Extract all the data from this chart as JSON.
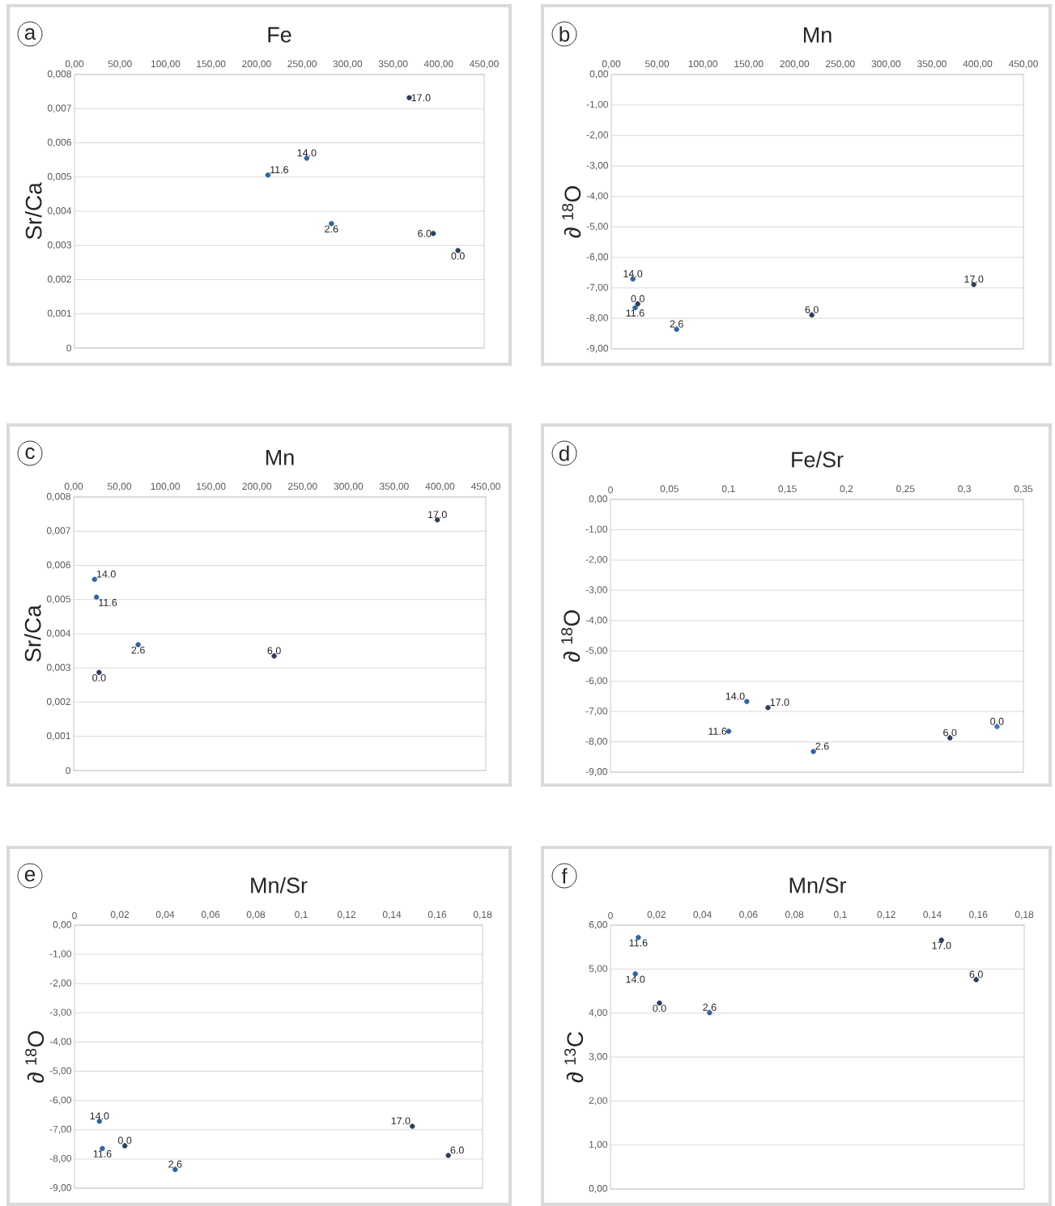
{
  "chart_data": [
    {
      "type": "scatter",
      "title": "Fe",
      "ylabel": "Sr/Ca",
      "grid": "y",
      "x": [
        367.7,
        255.1,
        212.5,
        282.2,
        394.1,
        421.2
      ],
      "values": [
        0.00732,
        0.00555,
        0.00506,
        0.00364,
        0.00335,
        0.00285
      ],
      "colors": [
        "#2d3e5e",
        "#2e64a2",
        "#2e64a2",
        "#2e64a2",
        "#2d3e5e",
        "#2d3e5e"
      ],
      "xlim": [
        0,
        450
      ],
      "ylim": [
        0,
        0.008
      ],
      "xticks": [
        {
          "value": 0,
          "label": "0,00"
        },
        {
          "value": 50,
          "label": "50,00"
        },
        {
          "value": 100,
          "label": "100,00"
        },
        {
          "value": 150,
          "label": "150,00"
        },
        {
          "value": 200,
          "label": "200,00"
        },
        {
          "value": 250,
          "label": "250,00"
        },
        {
          "value": 300,
          "label": "300,00"
        },
        {
          "value": 350,
          "label": "350,00"
        },
        {
          "value": 400,
          "label": "400,00"
        },
        {
          "value": 450,
          "label": "450,00"
        }
      ],
      "yticks": [
        0,
        {
          "value": 0.001,
          "label": "0,001"
        },
        {
          "value": 0.002,
          "label": "0,002"
        },
        {
          "value": 0.003,
          "label": "0,003"
        },
        {
          "value": 0.004,
          "label": "0,004"
        },
        {
          "value": 0.005,
          "label": "0,005"
        },
        {
          "value": 0.006,
          "label": "0,006"
        },
        {
          "value": 0.007,
          "label": "0,007"
        },
        {
          "value": 0.008,
          "label": "0,008"
        }
      ],
      "annotations": [
        "a",
        {
          "text": "17.0",
          "x": 367.7,
          "y": 0.00732
        },
        {
          "text": "14.0",
          "x": 255.1,
          "y": 0.00555
        },
        {
          "text": "11.6",
          "x": 212.5,
          "y": 0.00506
        },
        {
          "text": "2.6",
          "x": 282.2,
          "y": 0.00364
        },
        {
          "text": "6.0",
          "x": 394.1,
          "y": 0.00335
        },
        {
          "text": "0.0",
          "x": 421.2,
          "y": 0.00285
        }
      ]
    },
    {
      "type": "scatter",
      "title": "Mn",
      "ylabel": "∂ $^{18}$O",
      "grid": "y",
      "x": [
        23.5,
        28.9,
        26.0,
        71.3,
        218.9,
        395.8
      ],
      "values": [
        -6.71,
        -7.53,
        -7.65,
        -8.36,
        -7.89,
        -6.89
      ],
      "colors": [
        "#2e64a2",
        "#2d3e5e",
        "#2e64a2",
        "#2e64a2",
        "#2d3e5e",
        "#2d3e5e"
      ],
      "xlim": [
        0,
        450
      ],
      "ylim": [
        -9,
        0
      ],
      "xticks": [
        {
          "value": 0,
          "label": "0,00"
        },
        {
          "value": 50,
          "label": "50,00"
        },
        {
          "value": 100,
          "label": "100,00"
        },
        {
          "value": 150,
          "label": "150,00"
        },
        {
          "value": 200,
          "label": "200,00"
        },
        {
          "value": 250,
          "label": "250,00"
        },
        {
          "value": 300,
          "label": "300,00"
        },
        {
          "value": 350,
          "label": "350,00"
        },
        {
          "value": 400,
          "label": "400,00"
        },
        {
          "value": 450,
          "label": "450,00"
        }
      ],
      "yticks": [
        {
          "value": -9,
          "label": "-9,00"
        },
        {
          "value": -8,
          "label": "-8,00"
        },
        {
          "value": -7,
          "label": "-7,00"
        },
        {
          "value": -6,
          "label": "-6,00"
        },
        {
          "value": -5,
          "label": "-5,00"
        },
        {
          "value": -4,
          "label": "-4,00"
        },
        {
          "value": -3,
          "label": "-3,00"
        },
        {
          "value": -2,
          "label": "-2,00"
        },
        {
          "value": -1,
          "label": "-1,00"
        },
        {
          "value": 0,
          "label": "0,00"
        }
      ],
      "annotations": [
        "b",
        {
          "text": "14.0",
          "x": 23.5,
          "y": -6.71
        },
        {
          "text": "0.0",
          "x": 28.9,
          "y": -7.53
        },
        {
          "text": "11.6",
          "x": 26.0,
          "y": -7.65
        },
        {
          "text": "2.6",
          "x": 71.3,
          "y": -8.36
        },
        {
          "text": "6.0",
          "x": 218.9,
          "y": -7.89
        },
        {
          "text": "17.0",
          "x": 395.8,
          "y": -6.89
        }
      ]
    },
    {
      "type": "scatter",
      "title": "Mn",
      "ylabel": "Sr/Ca",
      "grid": "y",
      "x": [
        397.1,
        22.8,
        24.9,
        70.4,
        27.7,
        218.9
      ],
      "values": [
        0.00733,
        0.00559,
        0.00507,
        0.00368,
        0.00287,
        0.00335
      ],
      "colors": [
        "#2d3e5e",
        "#2e64a2",
        "#2e64a2",
        "#2e64a2",
        "#2d3e5e",
        "#2d3e5e"
      ],
      "xlim": [
        0,
        450
      ],
      "ylim": [
        0,
        0.008
      ],
      "xticks": [
        {
          "value": 0,
          "label": "0,00"
        },
        {
          "value": 50,
          "label": "50,00"
        },
        {
          "value": 100,
          "label": "100,00"
        },
        {
          "value": 150,
          "label": "150,00"
        },
        {
          "value": 200,
          "label": "200,00"
        },
        {
          "value": 250,
          "label": "250,00"
        },
        {
          "value": 300,
          "label": "300,00"
        },
        {
          "value": 350,
          "label": "350,00"
        },
        {
          "value": 400,
          "label": "400,00"
        },
        {
          "value": 450,
          "label": "450,00"
        }
      ],
      "yticks": [
        0,
        {
          "value": 0.001,
          "label": "0,001"
        },
        {
          "value": 0.002,
          "label": "0,002"
        },
        {
          "value": 0.003,
          "label": "0,003"
        },
        {
          "value": 0.004,
          "label": "0,004"
        },
        {
          "value": 0.005,
          "label": "0,005"
        },
        {
          "value": 0.006,
          "label": "0,006"
        },
        {
          "value": 0.007,
          "label": "0,007"
        },
        {
          "value": 0.008,
          "label": "0,008"
        }
      ],
      "annotations": [
        "c",
        {
          "text": "17.0",
          "x": 397.1,
          "y": 0.00733
        },
        {
          "text": "14.0",
          "x": 22.8,
          "y": 0.00559
        },
        {
          "text": "11.6",
          "x": 24.9,
          "y": 0.00507
        },
        {
          "text": "2.6",
          "x": 70.4,
          "y": 0.00368
        },
        {
          "text": "0.0",
          "x": 27.7,
          "y": 0.00287
        },
        {
          "text": "6.0",
          "x": 218.9,
          "y": 0.00335
        }
      ]
    },
    {
      "type": "scatter",
      "title": "Fe/Sr",
      "ylabel": "∂ $^{18}$O",
      "grid": "y",
      "x": [
        0.1155,
        0.1335,
        0.1002,
        0.172,
        0.2877,
        0.3276
      ],
      "values": [
        -6.67,
        -6.87,
        -7.65,
        -8.32,
        -7.87,
        -7.5
      ],
      "colors": [
        "#2e64a2",
        "#2d3e5e",
        "#2e64a2",
        "#2e64a2",
        "#2d3e5e",
        "#3f74d6"
      ],
      "xlim": [
        0,
        0.35
      ],
      "ylim": [
        -9,
        0
      ],
      "xticks": [
        0,
        {
          "value": 0.05,
          "label": "0,05"
        },
        {
          "value": 0.1,
          "label": "0,1"
        },
        {
          "value": 0.15,
          "label": "0,15"
        },
        {
          "value": 0.2,
          "label": "0,2"
        },
        {
          "value": 0.25,
          "label": "0,25"
        },
        {
          "value": 0.3,
          "label": "0,3"
        },
        {
          "value": 0.35,
          "label": "0,35"
        }
      ],
      "yticks": [
        {
          "value": -9,
          "label": "-9,00"
        },
        {
          "value": -8,
          "label": "-8,00"
        },
        {
          "value": -7,
          "label": "-7,00"
        },
        {
          "value": -6,
          "label": "-6,00"
        },
        {
          "value": -5,
          "label": "-5,00"
        },
        {
          "value": -4,
          "label": "-4,00"
        },
        {
          "value": -3,
          "label": "-3,00"
        },
        {
          "value": -2,
          "label": "-2,00"
        },
        {
          "value": -1,
          "label": "-1,00"
        },
        {
          "value": 0,
          "label": "0,00"
        }
      ],
      "annotations": [
        "d",
        {
          "text": "14.0",
          "x": 0.1155,
          "y": -6.67
        },
        {
          "text": "17.0",
          "x": 0.1335,
          "y": -6.87
        },
        {
          "text": "11.6",
          "x": 0.1002,
          "y": -7.65
        },
        {
          "text": "2.6",
          "x": 0.172,
          "y": -8.32
        },
        {
          "text": "6.0",
          "x": 0.2877,
          "y": -7.87
        },
        {
          "text": "0.0",
          "x": 0.3276,
          "y": -7.5
        }
      ]
    },
    {
      "type": "scatter",
      "title": "Mn/Sr",
      "ylabel": "∂ $^{18}$O",
      "grid": "y",
      "x": [
        0.011,
        0.0123,
        0.0222,
        0.0444,
        0.149,
        0.1649
      ],
      "values": [
        -6.71,
        -7.64,
        -7.55,
        -8.36,
        -6.88,
        -7.88
      ],
      "colors": [
        "#2e64a2",
        "#2e64a2",
        "#2d3e5e",
        "#2e64a2",
        "#2d3e5e",
        "#2d3e5e"
      ],
      "xlim": [
        0,
        0.18
      ],
      "ylim": [
        -9,
        0
      ],
      "xticks": [
        0,
        {
          "value": 0.02,
          "label": "0,02"
        },
        {
          "value": 0.04,
          "label": "0,04"
        },
        {
          "value": 0.06,
          "label": "0,06"
        },
        {
          "value": 0.08,
          "label": "0,08"
        },
        {
          "value": 0.1,
          "label": "0,1"
        },
        {
          "value": 0.12,
          "label": "0,12"
        },
        {
          "value": 0.14,
          "label": "0,14"
        },
        {
          "value": 0.16,
          "label": "0,16"
        },
        {
          "value": 0.18,
          "label": "0,18"
        }
      ],
      "yticks": [
        {
          "value": -9,
          "label": "-9,00"
        },
        {
          "value": -8,
          "label": "-8,00"
        },
        {
          "value": -7,
          "label": "-7,00"
        },
        {
          "value": -6,
          "label": "-6,00"
        },
        {
          "value": -5,
          "label": "-5,00"
        },
        {
          "value": -4,
          "label": "-4,00"
        },
        {
          "value": -3,
          "label": "-3,00"
        },
        {
          "value": -2,
          "label": "-2,00"
        },
        {
          "value": -1,
          "label": "-1,00"
        },
        {
          "value": 0,
          "label": "0,00"
        }
      ],
      "annotations": [
        "e",
        {
          "text": "14.0",
          "x": 0.011,
          "y": -6.71
        },
        {
          "text": "11.6",
          "x": 0.0123,
          "y": -7.64
        },
        {
          "text": "0.0",
          "x": 0.0222,
          "y": -7.55
        },
        {
          "text": "2.6",
          "x": 0.0444,
          "y": -8.36
        },
        {
          "text": "17.0",
          "x": 0.149,
          "y": -6.88
        },
        {
          "text": "6.0",
          "x": 0.1649,
          "y": -7.88
        }
      ]
    },
    {
      "type": "scatter",
      "title": "Mn/Sr",
      "ylabel": "∂ $^{13}$C",
      "grid": "y",
      "x": [
        0.0121,
        0.0108,
        0.0213,
        0.0431,
        0.144,
        0.1591
      ],
      "values": [
        5.72,
        4.89,
        4.23,
        4.01,
        5.66,
        4.76
      ],
      "colors": [
        "#2e64a2",
        "#2e64a2",
        "#2d3e5e",
        "#2e64a2",
        "#2d3e5e",
        "#2d3e5e"
      ],
      "xlim": [
        0,
        0.18
      ],
      "ylim": [
        0,
        6
      ],
      "xticks": [
        0,
        {
          "value": 0.02,
          "label": "0,02"
        },
        {
          "value": 0.04,
          "label": "0,04"
        },
        {
          "value": 0.06,
          "label": "0,06"
        },
        {
          "value": 0.08,
          "label": "0,08"
        },
        {
          "value": 0.1,
          "label": "0,1"
        },
        {
          "value": 0.12,
          "label": "0,12"
        },
        {
          "value": 0.14,
          "label": "0,14"
        },
        {
          "value": 0.16,
          "label": "0,16"
        },
        {
          "value": 0.18,
          "label": "0,18"
        }
      ],
      "yticks": [
        {
          "value": 0,
          "label": "0,00"
        },
        {
          "value": 1,
          "label": "1,00"
        },
        {
          "value": 2,
          "label": "2,00"
        },
        {
          "value": 3,
          "label": "3,00"
        },
        {
          "value": 4,
          "label": "4,00"
        },
        {
          "value": 5,
          "label": "5,00"
        },
        {
          "value": 6,
          "label": "6,00"
        }
      ],
      "annotations": [
        "f",
        {
          "text": "11.6",
          "x": 0.0121,
          "y": 5.72
        },
        {
          "text": "14.0",
          "x": 0.0108,
          "y": 4.89
        },
        {
          "text": "0.0",
          "x": 0.0213,
          "y": 4.23
        },
        {
          "text": "2.6",
          "x": 0.0431,
          "y": 4.01
        },
        {
          "text": "17.0",
          "x": 0.144,
          "y": 5.66
        },
        {
          "text": "6.0",
          "x": 0.1591,
          "y": 4.76
        }
      ]
    }
  ]
}
